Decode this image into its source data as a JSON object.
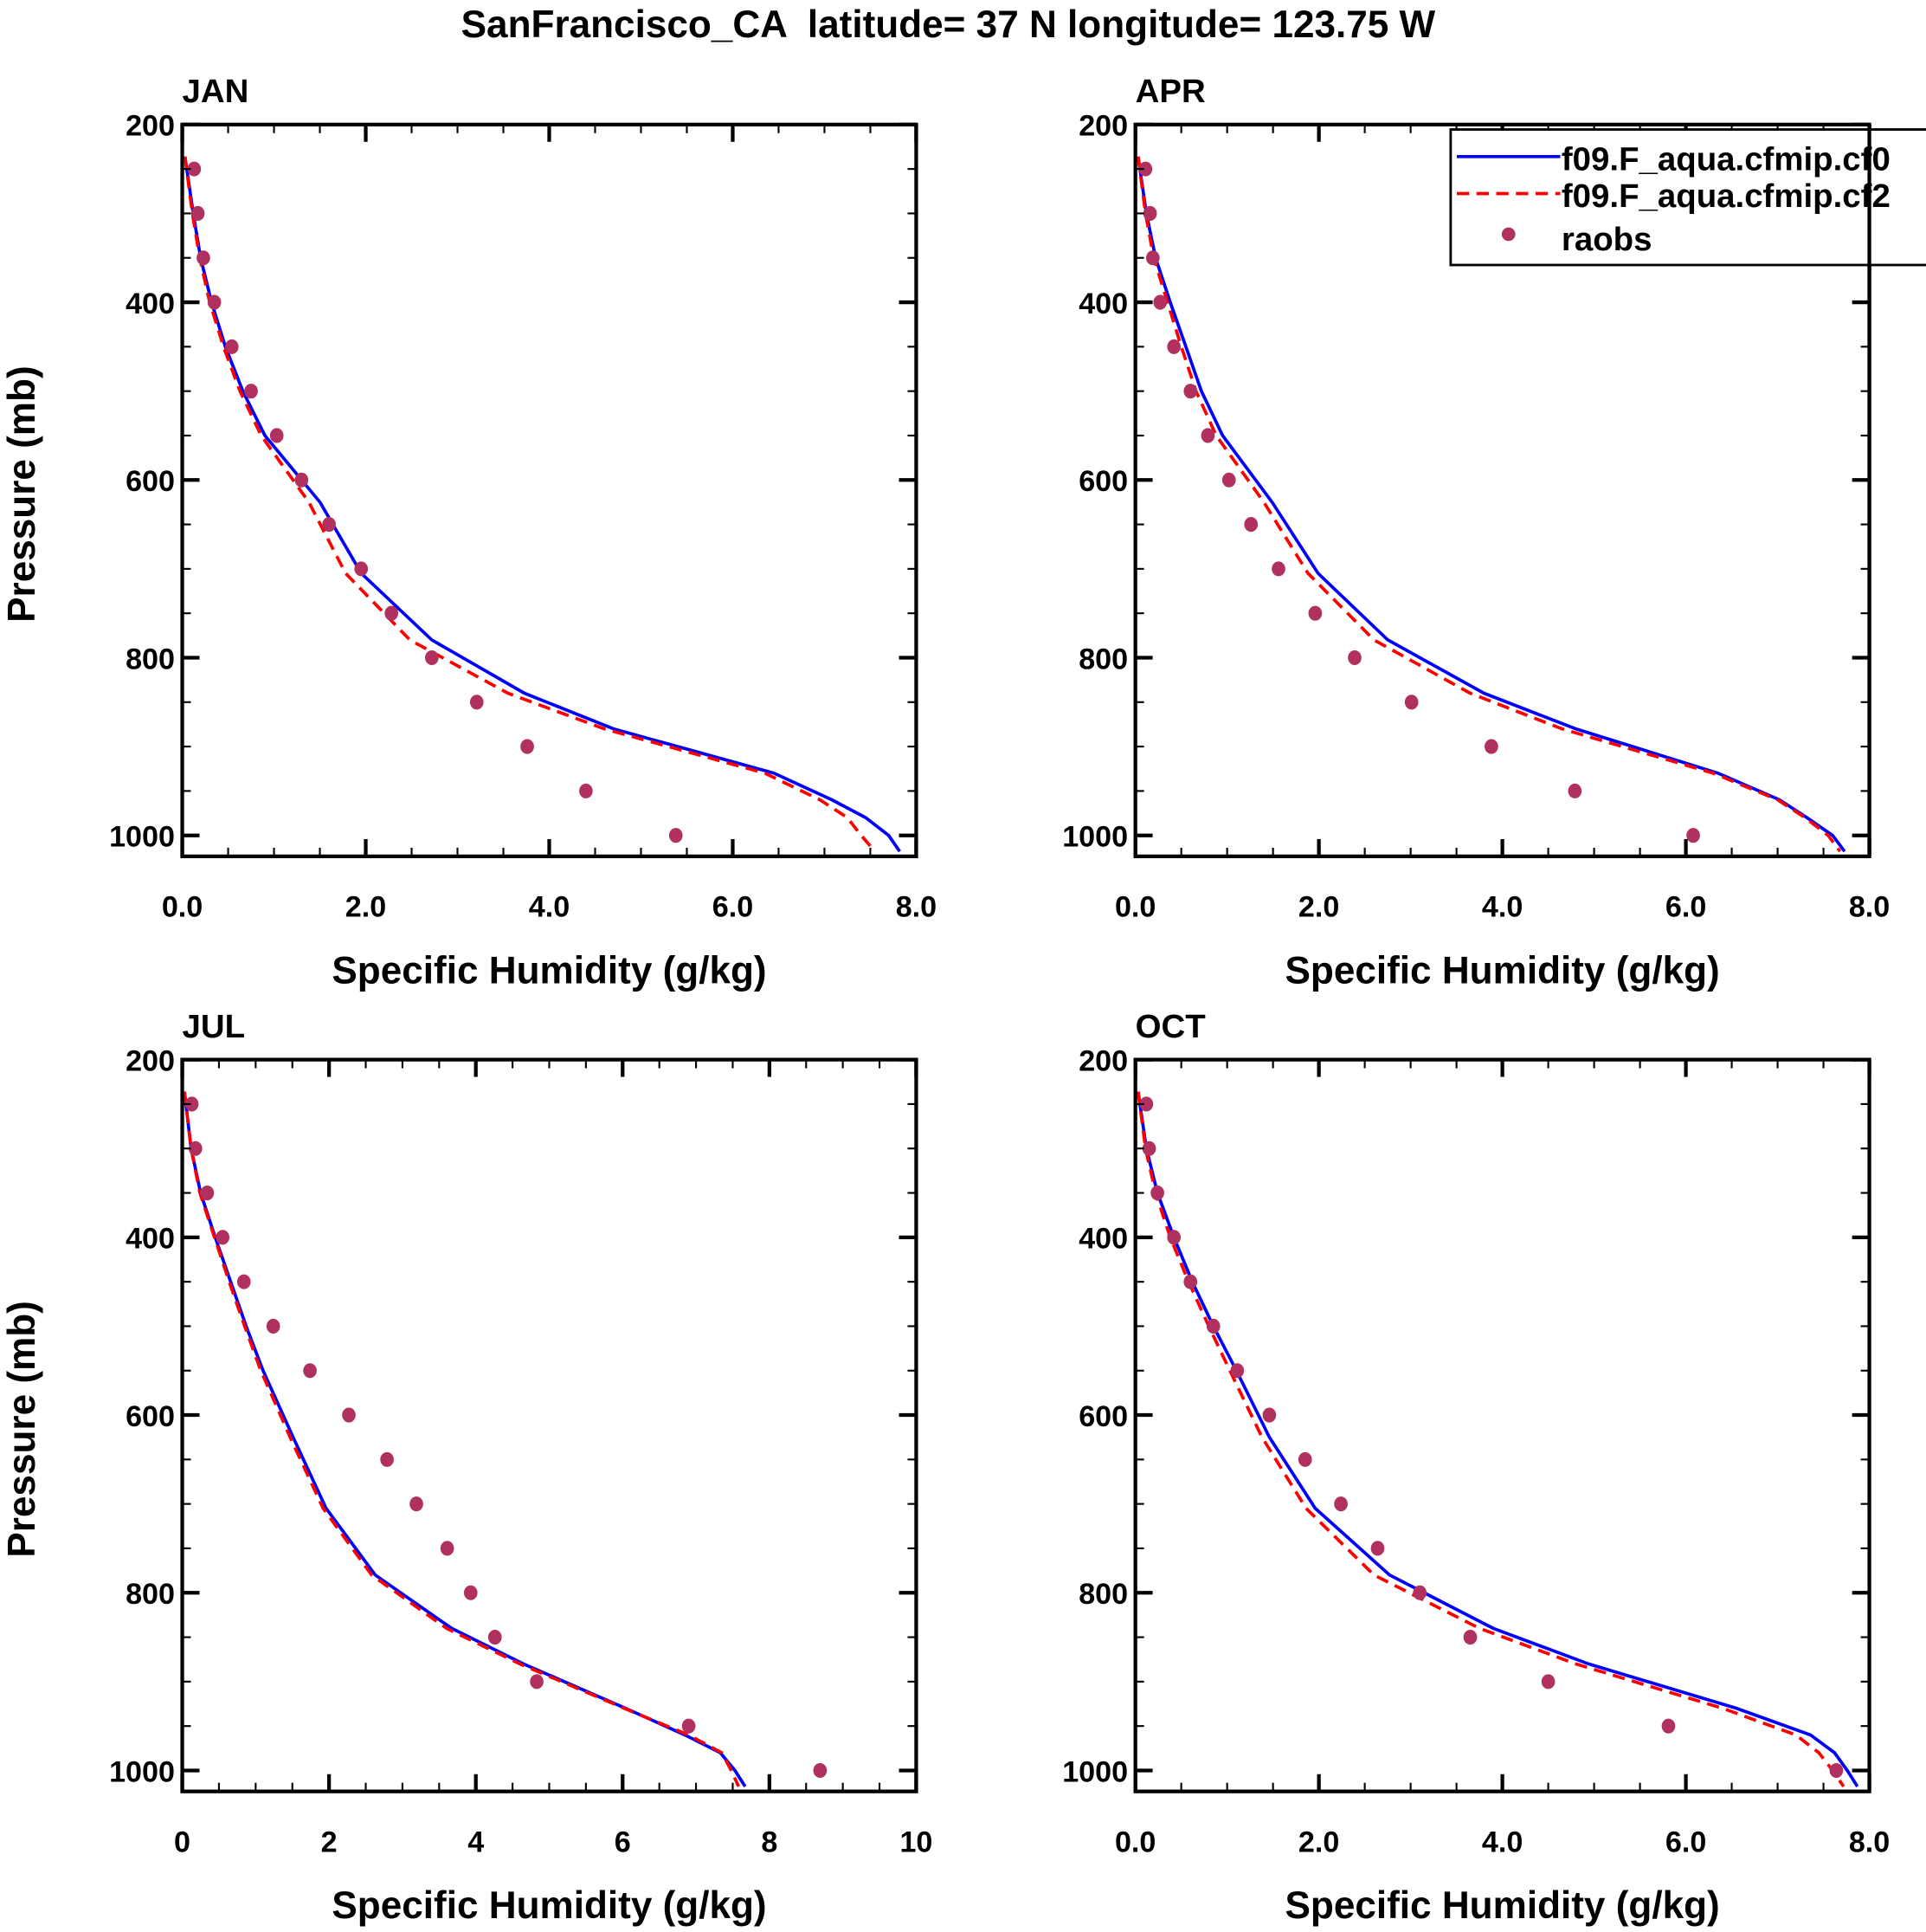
{
  "title": "SanFrancisco_CA  latitude= 37 N longitude= 123.75 W",
  "colors": {
    "model1": "#0000ff",
    "model2": "#ff0000",
    "raobs": "#b03060",
    "axis": "#000000"
  },
  "legend": {
    "placement": "top-right of APR panel",
    "entries": [
      {
        "label": "f09.F_aqua.cfmip.cf0",
        "style": "solid"
      },
      {
        "label": "f09.F_aqua.cfmip.cf2",
        "style": "dashed"
      },
      {
        "label": "raobs",
        "style": "dot"
      }
    ]
  },
  "chart_data": [
    {
      "type": "line",
      "title": "JAN",
      "xlabel": "Specific Humidity (g/kg)",
      "ylabel": "Pressure (mb)",
      "xlim": [
        0,
        8
      ],
      "ylim": [
        1023,
        200
      ],
      "xticks": [
        "0.0",
        "2.0",
        "4.0",
        "6.0",
        "8.0"
      ],
      "xtick_values": [
        0,
        2,
        4,
        6,
        8
      ],
      "yticks": [
        "200",
        "400",
        "600",
        "800",
        "1000"
      ],
      "series": [
        {
          "name": "f09.F_aqua.cfmip.cf0",
          "p": [
            236,
            300,
            350,
            400,
            450,
            500,
            550,
            625,
            705,
            780,
            840,
            880,
            930,
            960,
            980,
            1000,
            1018
          ],
          "q": [
            0.03,
            0.12,
            0.2,
            0.32,
            0.47,
            0.66,
            0.9,
            1.5,
            1.95,
            2.72,
            3.73,
            4.7,
            6.45,
            7.08,
            7.45,
            7.7,
            7.82
          ]
        },
        {
          "name": "f09.F_aqua.cfmip.cf2",
          "p": [
            236,
            300,
            350,
            400,
            450,
            500,
            550,
            625,
            705,
            780,
            840,
            880,
            930,
            960,
            980,
            1000,
            1018
          ],
          "q": [
            0.03,
            0.11,
            0.19,
            0.3,
            0.45,
            0.63,
            0.86,
            1.38,
            1.78,
            2.48,
            3.55,
            4.6,
            6.35,
            6.95,
            7.25,
            7.4,
            7.55
          ]
        },
        {
          "name": "raobs",
          "p": [
            250,
            300,
            350,
            400,
            450,
            500,
            550,
            600,
            650,
            700,
            750,
            800,
            850,
            900,
            950,
            1000
          ],
          "q": [
            0.13,
            0.17,
            0.23,
            0.35,
            0.54,
            0.75,
            1.03,
            1.3,
            1.6,
            1.95,
            2.28,
            2.72,
            3.21,
            3.76,
            4.4,
            5.38
          ]
        }
      ]
    },
    {
      "type": "line",
      "title": "APR",
      "xlabel": "Specific Humidity (g/kg)",
      "ylabel": "",
      "xlim": [
        0,
        8
      ],
      "ylim": [
        1023,
        200
      ],
      "xticks": [
        "0.0",
        "2.0",
        "4.0",
        "6.0",
        "8.0"
      ],
      "xtick_values": [
        0,
        2,
        4,
        6,
        8
      ],
      "yticks": [
        "200",
        "400",
        "600",
        "800",
        "1000"
      ],
      "series": [
        {
          "name": "f09.F_aqua.cfmip.cf0",
          "p": [
            236,
            300,
            350,
            400,
            450,
            500,
            550,
            625,
            705,
            780,
            840,
            880,
            930,
            960,
            980,
            1000,
            1018
          ],
          "q": [
            0.03,
            0.12,
            0.22,
            0.38,
            0.55,
            0.72,
            0.95,
            1.49,
            1.99,
            2.75,
            3.8,
            4.8,
            6.35,
            7.02,
            7.32,
            7.6,
            7.73
          ]
        },
        {
          "name": "f09.F_aqua.cfmip.cf2",
          "p": [
            236,
            300,
            350,
            400,
            450,
            500,
            550,
            625,
            705,
            780,
            840,
            880,
            930,
            960,
            980,
            1000,
            1018
          ],
          "q": [
            0.03,
            0.11,
            0.2,
            0.35,
            0.5,
            0.66,
            0.88,
            1.4,
            1.88,
            2.6,
            3.65,
            4.65,
            6.3,
            7.0,
            7.3,
            7.55,
            7.68
          ]
        },
        {
          "name": "raobs",
          "p": [
            250,
            300,
            350,
            400,
            450,
            500,
            550,
            600,
            650,
            700,
            750,
            800,
            850,
            900,
            950,
            1000
          ],
          "q": [
            0.11,
            0.16,
            0.19,
            0.27,
            0.42,
            0.6,
            0.79,
            1.02,
            1.26,
            1.56,
            1.96,
            2.39,
            3.01,
            3.88,
            4.79,
            6.08
          ]
        }
      ]
    },
    {
      "type": "line",
      "title": "JUL",
      "xlabel": "Specific Humidity (g/kg)",
      "ylabel": "Pressure (mb)",
      "xlim": [
        0,
        10
      ],
      "ylim": [
        1023,
        200
      ],
      "xticks": [
        "0",
        "2",
        "4",
        "6",
        "8",
        "10"
      ],
      "xtick_values": [
        0,
        2,
        4,
        6,
        8,
        10
      ],
      "yticks": [
        "200",
        "400",
        "600",
        "800",
        "1000"
      ],
      "series": [
        {
          "name": "f09.F_aqua.cfmip.cf0",
          "p": [
            236,
            300,
            350,
            400,
            450,
            500,
            550,
            625,
            705,
            780,
            840,
            880,
            930,
            960,
            980,
            1000,
            1018
          ],
          "q": [
            0.03,
            0.12,
            0.25,
            0.45,
            0.66,
            0.87,
            1.1,
            1.51,
            1.96,
            2.63,
            3.67,
            4.65,
            6.04,
            6.85,
            7.33,
            7.53,
            7.67
          ]
        },
        {
          "name": "f09.F_aqua.cfmip.cf2",
          "p": [
            236,
            300,
            350,
            400,
            450,
            500,
            550,
            625,
            705,
            780,
            840,
            880,
            930,
            960,
            980,
            1000,
            1018
          ],
          "q": [
            0.03,
            0.12,
            0.24,
            0.44,
            0.64,
            0.85,
            1.07,
            1.47,
            1.92,
            2.58,
            3.6,
            4.6,
            6.02,
            6.9,
            7.35,
            7.48,
            7.58
          ]
        },
        {
          "name": "raobs",
          "p": [
            250,
            300,
            350,
            400,
            450,
            500,
            550,
            600,
            650,
            700,
            750,
            800,
            850,
            900,
            950,
            1000
          ],
          "q": [
            0.13,
            0.18,
            0.34,
            0.55,
            0.84,
            1.24,
            1.74,
            2.27,
            2.79,
            3.19,
            3.61,
            3.93,
            4.26,
            4.83,
            6.9,
            8.69
          ]
        }
      ]
    },
    {
      "type": "line",
      "title": "OCT",
      "xlabel": "Specific Humidity (g/kg)",
      "ylabel": "",
      "xlim": [
        0,
        8
      ],
      "ylim": [
        1023,
        200
      ],
      "xticks": [
        "0.0",
        "2.0",
        "4.0",
        "6.0",
        "8.0"
      ],
      "xtick_values": [
        0,
        2,
        4,
        6,
        8
      ],
      "yticks": [
        "200",
        "400",
        "600",
        "800",
        "1000"
      ],
      "series": [
        {
          "name": "f09.F_aqua.cfmip.cf0",
          "p": [
            236,
            300,
            350,
            400,
            450,
            500,
            550,
            625,
            705,
            780,
            840,
            880,
            930,
            960,
            980,
            1000,
            1018
          ],
          "q": [
            0.03,
            0.12,
            0.24,
            0.42,
            0.62,
            0.85,
            1.1,
            1.46,
            1.96,
            2.77,
            3.9,
            4.94,
            6.55,
            7.36,
            7.62,
            7.76,
            7.87
          ]
        },
        {
          "name": "f09.F_aqua.cfmip.cf2",
          "p": [
            236,
            300,
            350,
            400,
            450,
            500,
            550,
            625,
            705,
            780,
            840,
            880,
            930,
            960,
            980,
            1000,
            1018
          ],
          "q": [
            0.03,
            0.11,
            0.22,
            0.38,
            0.58,
            0.8,
            1.03,
            1.38,
            1.86,
            2.6,
            3.75,
            4.8,
            6.4,
            7.2,
            7.45,
            7.6,
            7.72
          ]
        },
        {
          "name": "raobs",
          "p": [
            250,
            300,
            350,
            400,
            450,
            500,
            550,
            600,
            650,
            700,
            750,
            800,
            850,
            900,
            950,
            1000
          ],
          "q": [
            0.12,
            0.15,
            0.24,
            0.42,
            0.6,
            0.85,
            1.11,
            1.46,
            1.85,
            2.24,
            2.64,
            3.1,
            3.65,
            4.5,
            5.81,
            7.64
          ]
        }
      ]
    }
  ]
}
